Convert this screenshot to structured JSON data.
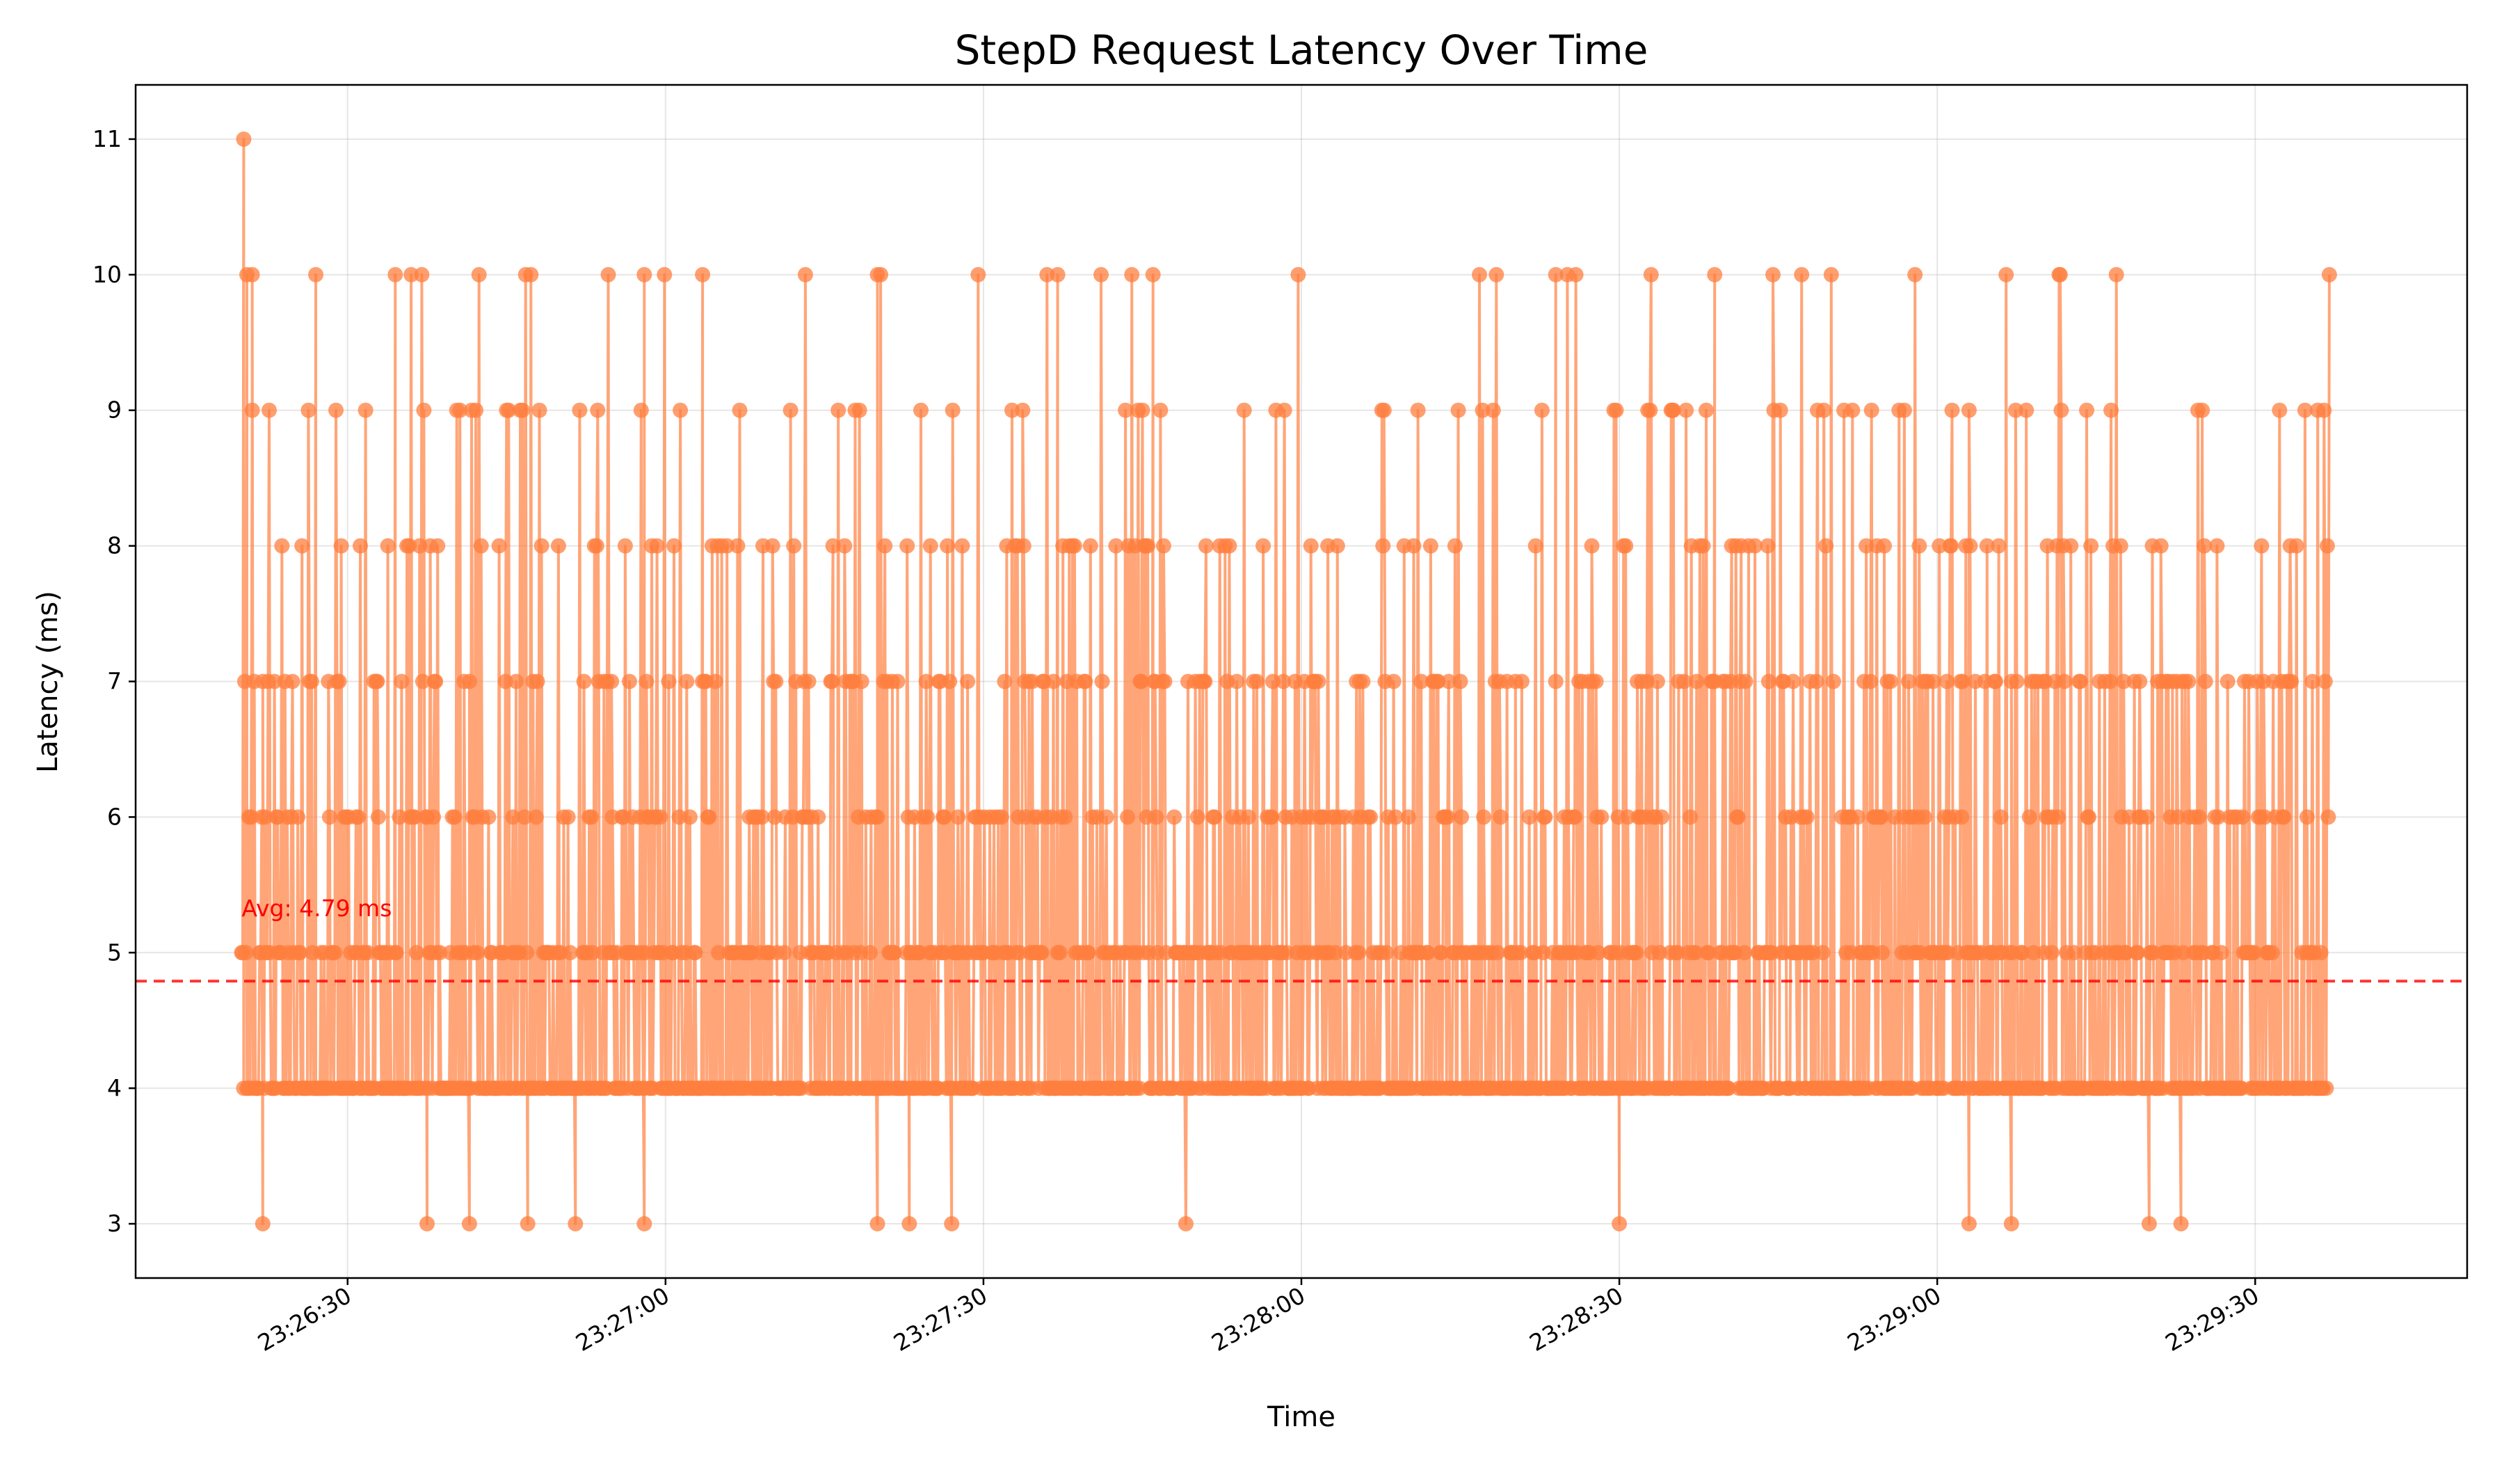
{
  "chart_data": {
    "type": "line",
    "title": "StepD Request Latency Over Time",
    "xlabel": "Time",
    "ylabel": "Latency (ms)",
    "xlim": [
      "23:26:10",
      "23:29:50"
    ],
    "ylim": [
      2.6,
      11.4
    ],
    "yticks": [
      3,
      4,
      5,
      6,
      7,
      8,
      9,
      10,
      11
    ],
    "xticks": [
      "23:26:30",
      "23:27:00",
      "23:27:30",
      "23:28:00",
      "23:28:30",
      "23:29:00",
      "23:29:30"
    ],
    "grid": true,
    "series": [
      {
        "name": "",
        "color": "#ff7f3f",
        "marker": "circle",
        "start_time": "23:26:20",
        "end_time": "23:29:37",
        "notable_points": [
          {
            "t": "23:26:20.2",
            "y": 11
          },
          {
            "t": "23:26:20.5",
            "y": 10
          },
          {
            "t": "23:26:21.0",
            "y": 9
          },
          {
            "t": "23:26:22.0",
            "y": 3
          },
          {
            "t": "23:26:27.0",
            "y": 10
          },
          {
            "t": "23:26:34.5",
            "y": 10
          },
          {
            "t": "23:26:37.5",
            "y": 3
          },
          {
            "t": "23:26:41.5",
            "y": 3
          },
          {
            "t": "23:26:47.0",
            "y": 3
          },
          {
            "t": "23:26:51.5",
            "y": 3
          },
          {
            "t": "23:26:58.0",
            "y": 3
          },
          {
            "t": "23:26:58.0",
            "y": 10
          },
          {
            "t": "23:27:03.5",
            "y": 10
          },
          {
            "t": "23:27:20.0",
            "y": 3
          },
          {
            "t": "23:27:20.0",
            "y": 10
          },
          {
            "t": "23:27:23.0",
            "y": 3
          },
          {
            "t": "23:27:27.0",
            "y": 3
          },
          {
            "t": "23:27:37.0",
            "y": 10
          },
          {
            "t": "23:27:46.0",
            "y": 10
          },
          {
            "t": "23:28:24.0",
            "y": 10
          },
          {
            "t": "23:28:30.0",
            "y": 3
          },
          {
            "t": "23:28:39.0",
            "y": 10
          },
          {
            "t": "23:29:03.0",
            "y": 3
          },
          {
            "t": "23:29:07.0",
            "y": 3
          },
          {
            "t": "23:29:20.0",
            "y": 3
          },
          {
            "t": "23:29:23.0",
            "y": 3
          },
          {
            "t": "23:29:37.0",
            "y": 10
          }
        ]
      }
    ],
    "reference_line": {
      "y": 4.79,
      "label": "Avg: 4.79 ms",
      "color": "#ff0000",
      "style": "dashed"
    }
  }
}
